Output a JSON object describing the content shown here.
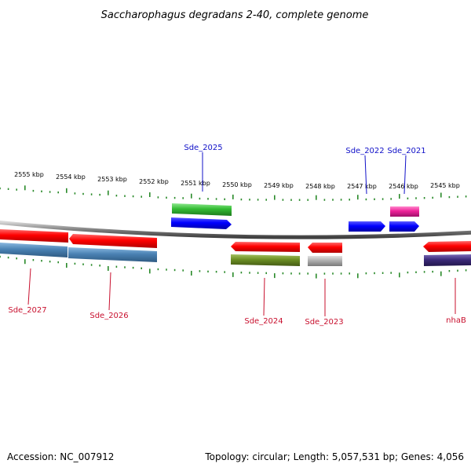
{
  "title": "Saccharophagus degradans 2-40, complete genome",
  "footer": {
    "accession": "Accession: NC_007912",
    "info": "Topology: circular; Length: 5,057,531 bp; Genes: 4,056"
  },
  "scale_labels": [
    "2555 kbp",
    "2554 kbp",
    "2553 kbp",
    "2552 kbp",
    "2551 kbp",
    "2550 kbp",
    "2549 kbp",
    "2548 kbp",
    "2547 kbp",
    "2546 kbp",
    "2545 kbp"
  ],
  "gene_labels_top": [
    "Sde_2025",
    "Sde_2022",
    "Sde_2021"
  ],
  "gene_labels_bottom": [
    "Sde_2027",
    "Sde_2026",
    "Sde_2024",
    "Sde_2023",
    "nhaB"
  ],
  "colors": {
    "forward_gene": "#0000ff",
    "reverse_gene": "#ff0000",
    "label_blue": "#1010c8",
    "label_red": "#c8102e",
    "tick": "#2a8a2a",
    "backbone": "#808080",
    "track_green": "#33bb33",
    "track_pink": "#ee2299",
    "track_steelblue": "#4a82b4",
    "track_olive": "#6b8e23",
    "track_gray": "#b0b0b0",
    "track_purple": "#3c2a7a"
  }
}
